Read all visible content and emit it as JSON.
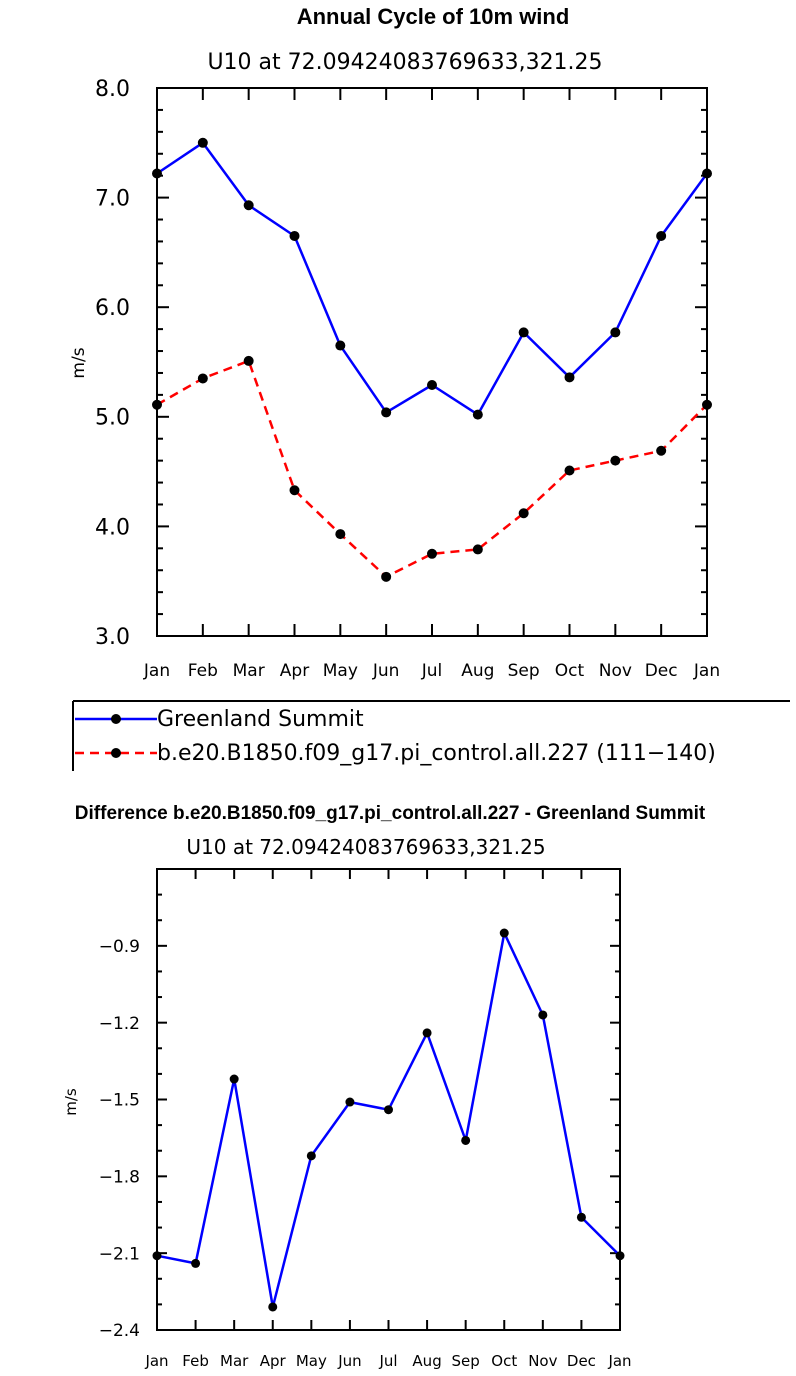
{
  "chart_data": [
    {
      "type": "line",
      "title": "Annual Cycle of 10m wind",
      "subtitle": "U10 at 72.09424083769633,321.25",
      "xlabel": "",
      "ylabel": "m/s",
      "ylim": [
        3.0,
        8.0
      ],
      "yticks": [
        "3.0",
        "4.0",
        "5.0",
        "6.0",
        "7.0",
        "8.0"
      ],
      "categories": [
        "Jan",
        "Feb",
        "Mar",
        "Apr",
        "May",
        "Jun",
        "Jul",
        "Aug",
        "Sep",
        "Oct",
        "Nov",
        "Dec",
        "Jan"
      ],
      "grid": false,
      "legend_position": "bottom-left",
      "series": [
        {
          "name": "Greenland Summit",
          "color": "#0000ff",
          "dash": "solid",
          "values": [
            7.22,
            7.5,
            6.93,
            6.65,
            5.65,
            5.04,
            5.29,
            5.02,
            5.77,
            5.36,
            5.77,
            6.65,
            7.22
          ]
        },
        {
          "name": "b.e20.B1850.f09_g17.pi_control.all.227 (111−140)",
          "color": "#ff0000",
          "dash": "dashed",
          "values": [
            5.11,
            5.35,
            5.51,
            4.33,
            3.93,
            3.54,
            3.75,
            3.79,
            4.12,
            4.51,
            4.6,
            4.69,
            5.11
          ]
        }
      ]
    },
    {
      "type": "line",
      "title": "Difference b.e20.B1850.f09_g17.pi_control.all.227 - Greenland Summit",
      "subtitle": "U10 at 72.09424083769633,321.25",
      "xlabel": "",
      "ylabel": "m/s",
      "ylim": [
        -2.4,
        -0.6
      ],
      "yticks": [
        "−2.4",
        "−2.1",
        "−1.8",
        "−1.5",
        "−1.2",
        "−0.9"
      ],
      "categories": [
        "Jan",
        "Feb",
        "Mar",
        "Apr",
        "May",
        "Jun",
        "Jul",
        "Aug",
        "Sep",
        "Oct",
        "Nov",
        "Dec",
        "Jan"
      ],
      "grid": false,
      "series": [
        {
          "name": "Difference",
          "color": "#0000ff",
          "dash": "solid",
          "values": [
            -2.11,
            -2.14,
            -1.42,
            -2.31,
            -1.72,
            -1.51,
            -1.54,
            -1.24,
            -1.66,
            -0.85,
            -1.17,
            -1.96,
            -2.11
          ]
        }
      ]
    }
  ]
}
